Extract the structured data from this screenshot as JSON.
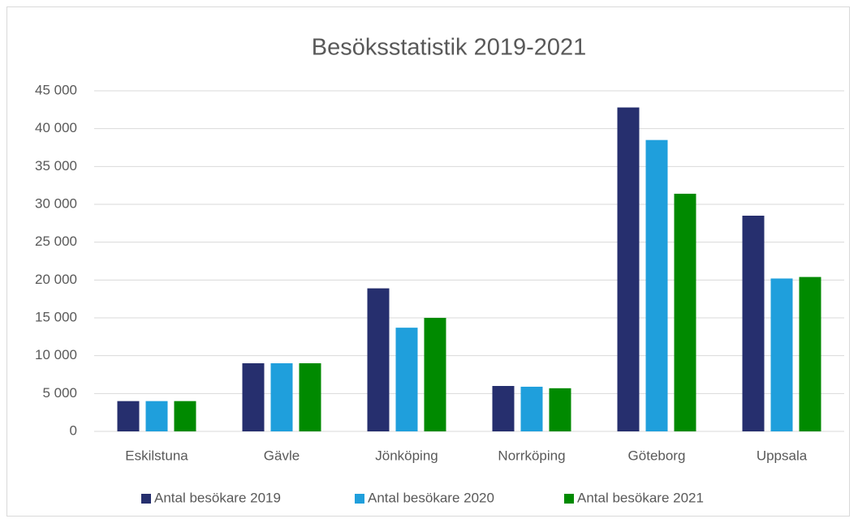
{
  "chart_data": {
    "type": "bar",
    "title": "Besöksstatistik 2019-2021",
    "categories": [
      "Eskilstuna",
      "Gävle",
      "Jönköping",
      "Norrköping",
      "Göteborg",
      "Uppsala"
    ],
    "series": [
      {
        "name": "Antal besökare 2019",
        "color": "#262f6e",
        "values": [
          4000,
          9000,
          18900,
          6000,
          42800,
          28500
        ]
      },
      {
        "name": "Antal besökare 2020",
        "color": "#1f9fdc",
        "values": [
          4000,
          9000,
          13700,
          5900,
          38500,
          20200
        ]
      },
      {
        "name": "Antal besökare 2021",
        "color": "#008a00",
        "values": [
          4000,
          9000,
          15000,
          5700,
          31400,
          20400
        ]
      }
    ],
    "ylim": [
      0,
      45000
    ],
    "yticks": [
      0,
      {
        "value": 5000,
        "label": "5 000"
      },
      {
        "value": 10000,
        "label": "10 000"
      },
      {
        "value": 15000,
        "label": "15 000"
      },
      {
        "value": 20000,
        "label": "20 000"
      },
      {
        "value": 25000,
        "label": "25 000"
      },
      {
        "value": 30000,
        "label": "30 000"
      },
      {
        "value": 35000,
        "label": "35 000"
      },
      {
        "value": 40000,
        "label": "40 000"
      },
      {
        "value": 45000,
        "label": "45 000"
      }
    ],
    "grid": true,
    "legend": "bottom"
  }
}
